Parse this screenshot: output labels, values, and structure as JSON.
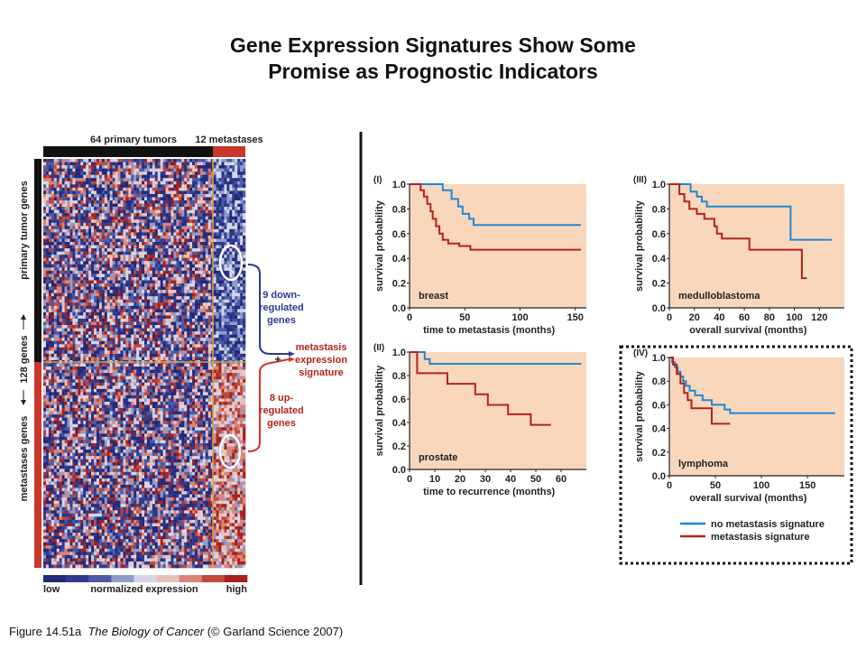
{
  "title": {
    "line1": "Gene Expression Signatures Show Some",
    "line2": "Promise as Prognostic Indicators"
  },
  "caption": {
    "figure": "Figure 14.51a",
    "book": "The Biology of Cancer",
    "copyright": "(© Garland Science 2007)"
  },
  "colors": {
    "no_signature": "#1e88d6",
    "signature": "#b5221c",
    "panel_bg": "#f9d7bc",
    "heat_low": "#232a78",
    "heat_high": "#a8201c",
    "bar_primary": "#111111",
    "bar_metastasis": "#c8382b"
  },
  "heatmap": {
    "top_label_primary": "64 primary tumors",
    "top_label_metastases": "12 metastases",
    "left_label_primary": "primary tumor genes",
    "left_label_count": "128 genes",
    "left_label_metastases": "metastases genes",
    "down_label": [
      "9 down-",
      "regulated",
      "genes"
    ],
    "up_label": [
      "8 up-",
      "regulated",
      "genes"
    ],
    "signature_label": [
      "metastasis",
      "expression",
      "signature"
    ],
    "plus": "+",
    "scale_low": "low",
    "scale_mid": "normalized expression",
    "scale_high": "high"
  },
  "chart_data": [
    {
      "type": "line",
      "panel": "(I)",
      "label": "breast",
      "xlabel": "time to metastasis (months)",
      "ylabel": "survival probability",
      "xlim": [
        0,
        160
      ],
      "ylim": [
        0,
        1.0
      ],
      "xticks": [
        0,
        50,
        100,
        150
      ],
      "yticks": [
        0.0,
        0.2,
        0.4,
        0.6,
        0.8,
        1.0
      ],
      "series": [
        {
          "name": "no metastasis signature",
          "color": "#1e88d6",
          "points": [
            [
              0,
              1.0
            ],
            [
              28,
              1.0
            ],
            [
              30,
              0.95
            ],
            [
              38,
              0.88
            ],
            [
              44,
              0.82
            ],
            [
              48,
              0.76
            ],
            [
              54,
              0.72
            ],
            [
              58,
              0.67
            ],
            [
              155,
              0.67
            ]
          ]
        },
        {
          "name": "metastasis signature",
          "color": "#b5221c",
          "points": [
            [
              0,
              1.0
            ],
            [
              8,
              1.0
            ],
            [
              10,
              0.95
            ],
            [
              13,
              0.9
            ],
            [
              16,
              0.84
            ],
            [
              19,
              0.78
            ],
            [
              21,
              0.72
            ],
            [
              24,
              0.66
            ],
            [
              27,
              0.6
            ],
            [
              30,
              0.55
            ],
            [
              35,
              0.52
            ],
            [
              45,
              0.5
            ],
            [
              55,
              0.47
            ],
            [
              155,
              0.47
            ]
          ]
        }
      ]
    },
    {
      "type": "line",
      "panel": "(II)",
      "label": "prostate",
      "xlabel": "time to recurrence (months)",
      "ylabel": "survival probability",
      "xlim": [
        0,
        70
      ],
      "ylim": [
        0,
        1.0
      ],
      "xticks": [
        0,
        10,
        20,
        30,
        40,
        50,
        60
      ],
      "yticks": [
        0.0,
        0.2,
        0.4,
        0.6,
        0.8,
        1.0
      ],
      "series": [
        {
          "name": "no metastasis signature",
          "color": "#1e88d6",
          "points": [
            [
              0,
              1.0
            ],
            [
              5,
              1.0
            ],
            [
              6,
              0.94
            ],
            [
              8,
              0.9
            ],
            [
              68,
              0.9
            ]
          ]
        },
        {
          "name": "metastasis signature",
          "color": "#b5221c",
          "points": [
            [
              0,
              1.0
            ],
            [
              2,
              1.0
            ],
            [
              3,
              0.82
            ],
            [
              14,
              0.82
            ],
            [
              15,
              0.73
            ],
            [
              25,
              0.73
            ],
            [
              26,
              0.64
            ],
            [
              30,
              0.64
            ],
            [
              31,
              0.55
            ],
            [
              38,
              0.55
            ],
            [
              39,
              0.47
            ],
            [
              47,
              0.47
            ],
            [
              48,
              0.38
            ],
            [
              56,
              0.38
            ]
          ]
        }
      ]
    },
    {
      "type": "line",
      "panel": "(III)",
      "label": "medulloblastoma",
      "xlabel": "overall survival (months)",
      "ylabel": "survival probability",
      "xlim": [
        0,
        140
      ],
      "ylim": [
        0,
        1.0
      ],
      "xticks": [
        0,
        20,
        40,
        60,
        80,
        100,
        120
      ],
      "yticks": [
        0.0,
        0.2,
        0.4,
        0.6,
        0.8,
        1.0
      ],
      "series": [
        {
          "name": "no metastasis signature",
          "color": "#1e88d6",
          "points": [
            [
              0,
              1.0
            ],
            [
              16,
              1.0
            ],
            [
              17,
              0.94
            ],
            [
              22,
              0.9
            ],
            [
              26,
              0.86
            ],
            [
              30,
              0.82
            ],
            [
              96,
              0.82
            ],
            [
              97,
              0.55
            ],
            [
              130,
              0.55
            ]
          ]
        },
        {
          "name": "metastasis signature",
          "color": "#b5221c",
          "points": [
            [
              0,
              1.0
            ],
            [
              6,
              1.0
            ],
            [
              8,
              0.92
            ],
            [
              12,
              0.86
            ],
            [
              16,
              0.8
            ],
            [
              22,
              0.76
            ],
            [
              28,
              0.72
            ],
            [
              36,
              0.66
            ],
            [
              38,
              0.6
            ],
            [
              42,
              0.56
            ],
            [
              62,
              0.56
            ],
            [
              64,
              0.47
            ],
            [
              104,
              0.47
            ],
            [
              106,
              0.24
            ],
            [
              110,
              0.24
            ]
          ]
        }
      ]
    },
    {
      "type": "line",
      "panel": "(IV)",
      "label": "lymphoma",
      "xlabel": "overall survival (months)",
      "ylabel": "survival probability",
      "xlim": [
        0,
        190
      ],
      "ylim": [
        0,
        1.0
      ],
      "xticks": [
        0,
        50,
        100,
        150
      ],
      "yticks": [
        0.0,
        0.2,
        0.4,
        0.6,
        0.8,
        1.0
      ],
      "series": [
        {
          "name": "no metastasis signature",
          "color": "#1e88d6",
          "points": [
            [
              0,
              1.0
            ],
            [
              3,
              0.96
            ],
            [
              6,
              0.92
            ],
            [
              9,
              0.88
            ],
            [
              12,
              0.84
            ],
            [
              15,
              0.8
            ],
            [
              18,
              0.76
            ],
            [
              22,
              0.72
            ],
            [
              28,
              0.68
            ],
            [
              36,
              0.64
            ],
            [
              46,
              0.6
            ],
            [
              60,
              0.56
            ],
            [
              66,
              0.53
            ],
            [
              180,
              0.53
            ]
          ]
        },
        {
          "name": "metastasis signature",
          "color": "#b5221c",
          "points": [
            [
              0,
              1.0
            ],
            [
              4,
              0.94
            ],
            [
              8,
              0.86
            ],
            [
              12,
              0.78
            ],
            [
              16,
              0.7
            ],
            [
              20,
              0.64
            ],
            [
              24,
              0.57
            ],
            [
              44,
              0.57
            ],
            [
              46,
              0.44
            ],
            [
              66,
              0.44
            ]
          ]
        }
      ]
    }
  ],
  "legend": {
    "no_signature": "no metastasis signature",
    "signature": "metastasis signature"
  }
}
